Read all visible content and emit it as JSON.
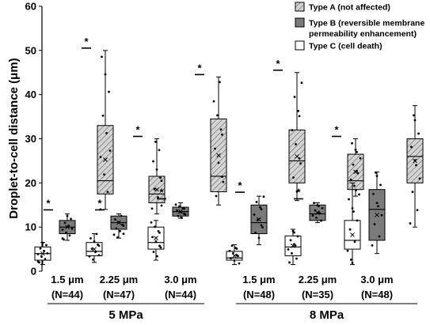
{
  "chart_data": {
    "type": "box",
    "ylabel": "Droplet-to-cell distance (μm)",
    "ylim": [
      0,
      60
    ],
    "yticks": [
      0,
      10,
      20,
      30,
      40,
      50,
      60
    ],
    "categories": [
      {
        "size": "1.5 μm",
        "n": "(N=44)"
      },
      {
        "size": "2.25 μm",
        "n": "(N=47)"
      },
      {
        "size": "3.0 μm",
        "n": "(N=44)"
      },
      {
        "size": "1.5 μm",
        "n": "(N=48)"
      },
      {
        "size": "2.25 μm",
        "n": "(N=35)"
      },
      {
        "size": "3.0 μm",
        "n": "(N=48)"
      }
    ],
    "groups": [
      {
        "label": "5 MPa",
        "categories": [
          0,
          1,
          2
        ]
      },
      {
        "label": "8 MPa",
        "categories": [
          3,
          4,
          5
        ]
      }
    ],
    "series": [
      {
        "name": "Type A (not affected)",
        "fill": "#d4d4d4",
        "hatch": true,
        "boxes": [
          {
            "min": 14,
            "q1": 17.5,
            "median": 20.5,
            "q3": 33,
            "max": 50
          },
          {
            "min": 13,
            "q1": 15.5,
            "median": 17.5,
            "q3": 21.5,
            "max": 30
          },
          {
            "min": 15,
            "q1": 18,
            "median": 21.5,
            "q3": 34.5,
            "max": 44
          },
          {
            "min": 16,
            "q1": 20,
            "median": 25,
            "q3": 32,
            "max": 45
          },
          {
            "min": 17,
            "q1": 18.5,
            "median": 20.5,
            "q3": 26.5,
            "max": 30
          },
          {
            "min": 10,
            "q1": 20,
            "median": 26,
            "q3": 30,
            "max": 37.5
          }
        ]
      },
      {
        "name": "Type B (reversible membrane permeability enhancement)",
        "fill": "#7a7a7a",
        "hatch": false,
        "boxes": [
          {
            "min": 7,
            "q1": 8.5,
            "median": 10,
            "q3": 11.5,
            "max": 13
          },
          {
            "min": 7.5,
            "q1": 9.5,
            "median": 11,
            "q3": 12.5,
            "max": 13
          },
          {
            "min": 12,
            "q1": 12.5,
            "median": 13.5,
            "q3": 14.5,
            "max": 15.5
          },
          {
            "min": 6,
            "q1": 8.5,
            "median": 11,
            "q3": 15,
            "max": 17
          },
          {
            "min": 11,
            "q1": 11.5,
            "median": 13,
            "q3": 15,
            "max": 15.5
          },
          {
            "min": 4,
            "q1": 7,
            "median": 14,
            "q3": 18.5,
            "max": 22.5
          }
        ]
      },
      {
        "name": "Type C (cell death)",
        "fill": "#ffffff",
        "hatch": false,
        "boxes": [
          {
            "min": 1.5,
            "q1": 2.5,
            "median": 4,
            "q3": 5.5,
            "max": 6.5
          },
          {
            "min": 2,
            "q1": 3.5,
            "median": 4.5,
            "q3": 6.5,
            "max": 8.5
          },
          {
            "min": 2.5,
            "q1": 5,
            "median": 6.5,
            "q3": 10,
            "max": 11.5
          },
          {
            "min": 1.5,
            "q1": 2.5,
            "median": 3,
            "q3": 4.5,
            "max": 6
          },
          {
            "min": 1.5,
            "q1": 3.5,
            "median": 5.5,
            "q3": 8,
            "max": 9.5
          },
          {
            "min": 1.5,
            "q1": 5,
            "median": 7,
            "q3": 11.5,
            "max": 20
          }
        ]
      }
    ],
    "significance_marker": "*",
    "legend": "top-right"
  }
}
